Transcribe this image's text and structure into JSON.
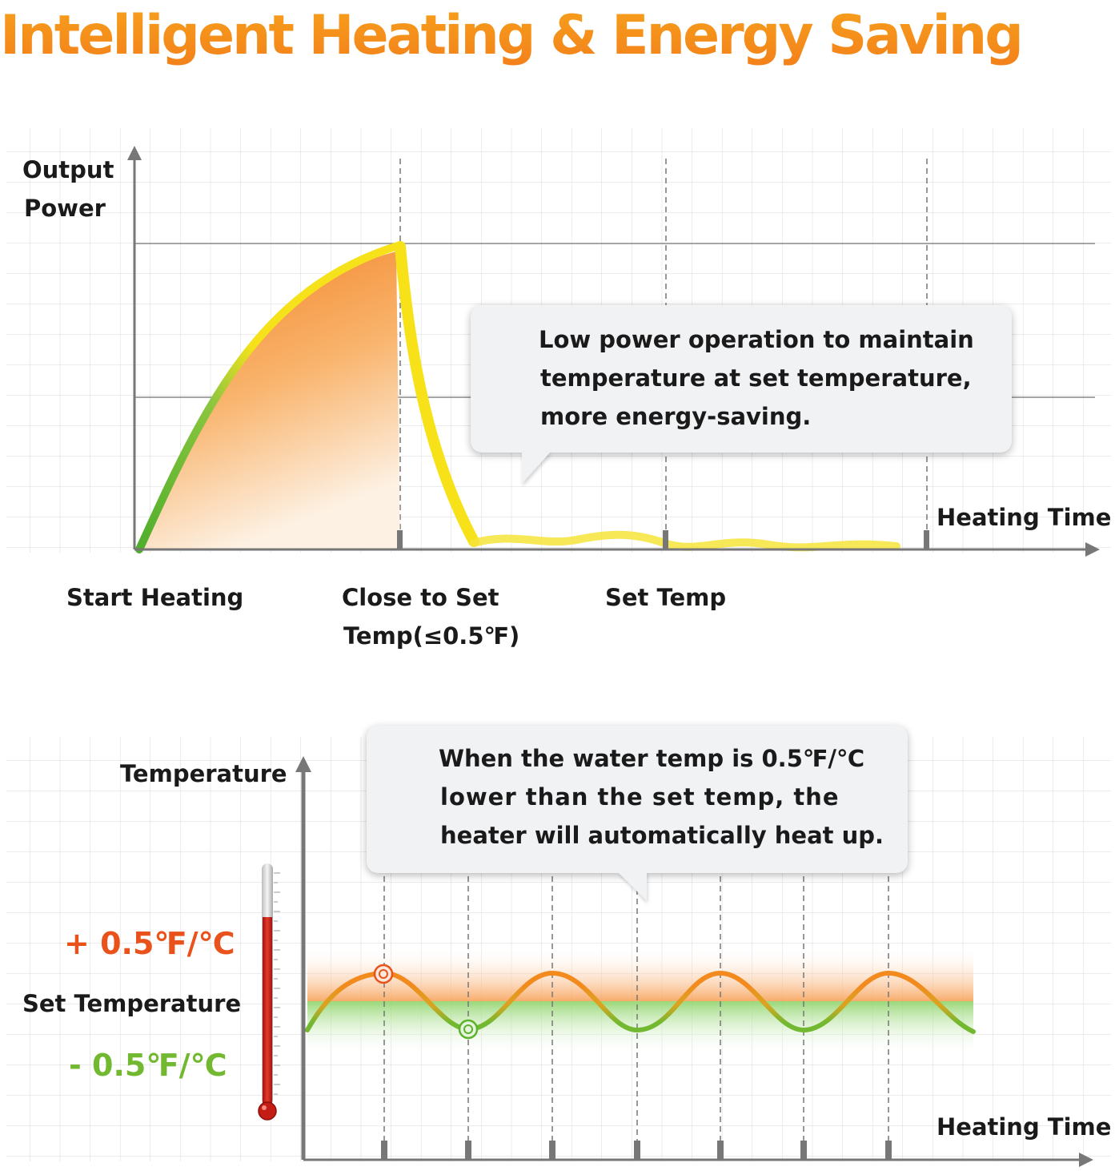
{
  "title": "Intelligent Heating & Energy Saving",
  "chart1": {
    "ylabel_line1": "Output",
    "ylabel_line2": "Power",
    "xlabel": "Heating Time",
    "stages": {
      "start": "Start Heating",
      "close_line1": "Close to Set",
      "close_line2": "Temp(≤0.5℉)",
      "set": "Set Temp"
    },
    "callout": [
      "Low power operation to maintain",
      "temperature at set temperature,",
      "more energy-saving."
    ]
  },
  "chart2": {
    "ylabel": "Temperature",
    "xlabel": "Heating Time",
    "upper": "+ 0.5℉/℃",
    "set": "Set Temperature",
    "lower": "- 0.5℉/℃",
    "callout": [
      "When the water temp is 0.5℉/℃",
      "lower than the set temp, the",
      "heater will automatically heat up."
    ]
  },
  "colors": {
    "orange": "#f07f1e",
    "yellow": "#f7e21a",
    "green": "#6cbf2a",
    "red_upper": "#e9521b",
    "green_lower": "#72b830"
  }
}
